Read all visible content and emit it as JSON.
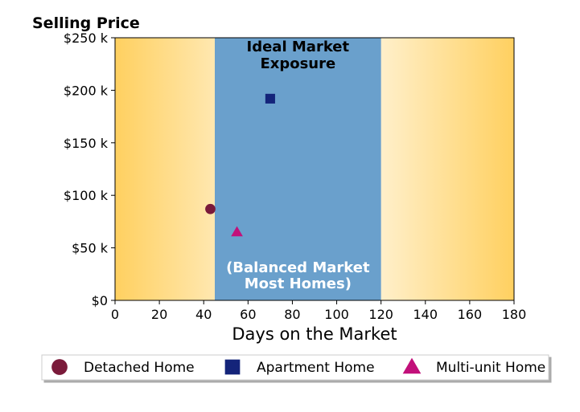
{
  "chart_data": {
    "type": "scatter",
    "ylabel": "Selling Price",
    "xlabel": "Days on the Market",
    "xlim": [
      0,
      180
    ],
    "ylim": [
      0,
      250000
    ],
    "x_ticks": [
      0,
      20,
      40,
      60,
      80,
      100,
      120,
      140,
      160,
      180
    ],
    "x_tick_labels": [
      "0",
      "20",
      "40",
      "60",
      "80",
      "100",
      "120",
      "140",
      "160",
      "180"
    ],
    "y_ticks": [
      0,
      50000,
      100000,
      150000,
      200000,
      250000
    ],
    "y_tick_labels": [
      "$0",
      "$50 k",
      "$100 k",
      "$150 k",
      "$200 k",
      "$250 k"
    ],
    "grid": false,
    "background": {
      "gradient_color": "#ffd060",
      "ideal_band": {
        "x_range": [
          45,
          120
        ],
        "color": "#6aa0cc",
        "top_text": [
          "Ideal Market",
          "Exposure"
        ],
        "bottom_text": [
          "(Balanced Market",
          "Most Homes)"
        ]
      }
    },
    "series": [
      {
        "name": "Detached Home",
        "marker": "circle",
        "color": "#7a1a3a",
        "points": [
          {
            "x": 43,
            "y": 87000
          }
        ]
      },
      {
        "name": "Apartment Home",
        "marker": "square",
        "color": "#14247a",
        "points": [
          {
            "x": 70,
            "y": 192000
          }
        ]
      },
      {
        "name": "Multi-unit Home",
        "marker": "triangle",
        "color": "#c2107a",
        "points": [
          {
            "x": 55,
            "y": 65000
          }
        ]
      }
    ],
    "legend_placement": "bottom"
  }
}
